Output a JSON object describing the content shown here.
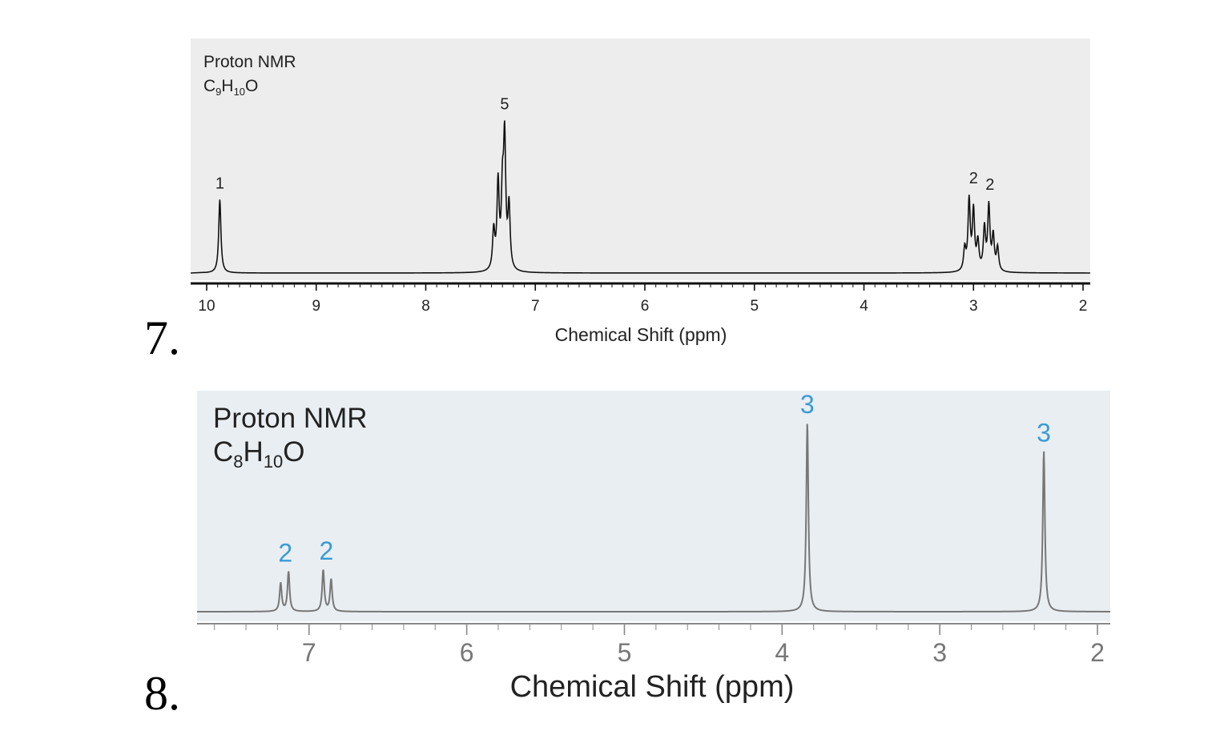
{
  "problems": [
    {
      "number": "7."
    },
    {
      "number": "8."
    }
  ],
  "chart_data": [
    {
      "type": "line",
      "title": "Proton NMR",
      "formula": {
        "c": "C",
        "c_sub": "9",
        "h": "H",
        "h_sub": "10",
        "o": "O"
      },
      "xlabel": "Chemical Shift (ppm)",
      "xlim": [
        10,
        2
      ],
      "x_reversed": true,
      "x_ticks": [
        "10",
        "9",
        "8",
        "7",
        "6",
        "5",
        "4",
        "3",
        "2"
      ],
      "peaks": [
        {
          "ppm": 9.88,
          "integration": "1",
          "lines": [
            {
              "ppm": 9.88,
              "height": 0.47
            }
          ]
        },
        {
          "ppm": 7.28,
          "integration": "5",
          "lines": [
            {
              "ppm": 7.38,
              "height": 0.25
            },
            {
              "ppm": 7.34,
              "height": 0.55
            },
            {
              "ppm": 7.3,
              "height": 0.45
            },
            {
              "ppm": 7.28,
              "height": 0.8
            },
            {
              "ppm": 7.24,
              "height": 0.4
            }
          ]
        },
        {
          "ppm": 3.0,
          "integration": "2",
          "lines": [
            {
              "ppm": 3.08,
              "height": 0.14
            },
            {
              "ppm": 3.04,
              "height": 0.45
            },
            {
              "ppm": 3.0,
              "height": 0.38
            },
            {
              "ppm": 2.96,
              "height": 0.18
            }
          ]
        },
        {
          "ppm": 2.85,
          "integration": "2",
          "lines": [
            {
              "ppm": 2.9,
              "height": 0.27
            },
            {
              "ppm": 2.86,
              "height": 0.41
            },
            {
              "ppm": 2.82,
              "height": 0.22
            },
            {
              "ppm": 2.78,
              "height": 0.15
            }
          ]
        }
      ],
      "colors": {
        "background": "#ededed",
        "line": "#111111",
        "label": "#222222"
      }
    },
    {
      "type": "line",
      "title": "Proton NMR",
      "formula": {
        "c": "C",
        "c_sub": "8",
        "h": "H",
        "h_sub": "10",
        "o": "O"
      },
      "xlabel": "Chemical Shift (ppm)",
      "xlim": [
        7.7,
        2
      ],
      "x_reversed": true,
      "x_ticks": [
        "7",
        "6",
        "5",
        "4",
        "3",
        "2"
      ],
      "peaks": [
        {
          "ppm": 7.15,
          "integration": "2",
          "lines": [
            {
              "ppm": 7.18,
              "height": 0.15
            },
            {
              "ppm": 7.13,
              "height": 0.21
            }
          ]
        },
        {
          "ppm": 6.89,
          "integration": "2",
          "lines": [
            {
              "ppm": 6.91,
              "height": 0.22
            },
            {
              "ppm": 6.86,
              "height": 0.17
            }
          ]
        },
        {
          "ppm": 3.84,
          "integration": "3",
          "lines": [
            {
              "ppm": 3.84,
              "height": 1.0
            }
          ]
        },
        {
          "ppm": 2.34,
          "integration": "3",
          "lines": [
            {
              "ppm": 2.34,
              "height": 0.85
            }
          ]
        }
      ],
      "colors": {
        "background": "#e9eef2",
        "line": "#777777",
        "label": "#3a9bd5",
        "text": "#222222"
      }
    }
  ]
}
